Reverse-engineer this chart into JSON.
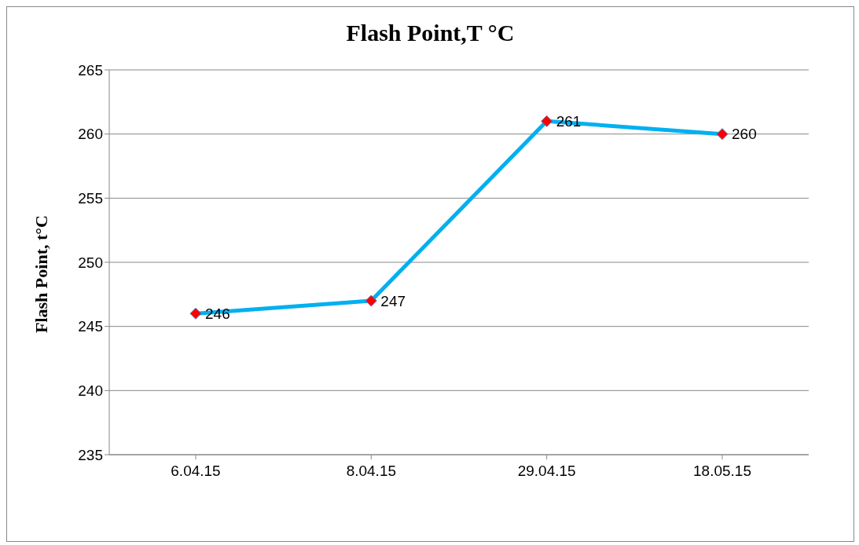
{
  "chart_data": {
    "type": "line",
    "title": "Flash Point,T °C",
    "ylabel": "Flash Point, t°C",
    "categories": [
      "6.04.15",
      "8.04.15",
      "29.04.15",
      "18.05.15"
    ],
    "series": [
      {
        "color": "#00b0f0",
        "values": [
          246,
          247,
          261,
          260
        ]
      }
    ],
    "ylim": [
      235,
      265
    ],
    "yticks": [
      235,
      240,
      245,
      250,
      255,
      260,
      265
    ],
    "grid": "y",
    "marker": "diamond",
    "data_labels": true
  }
}
